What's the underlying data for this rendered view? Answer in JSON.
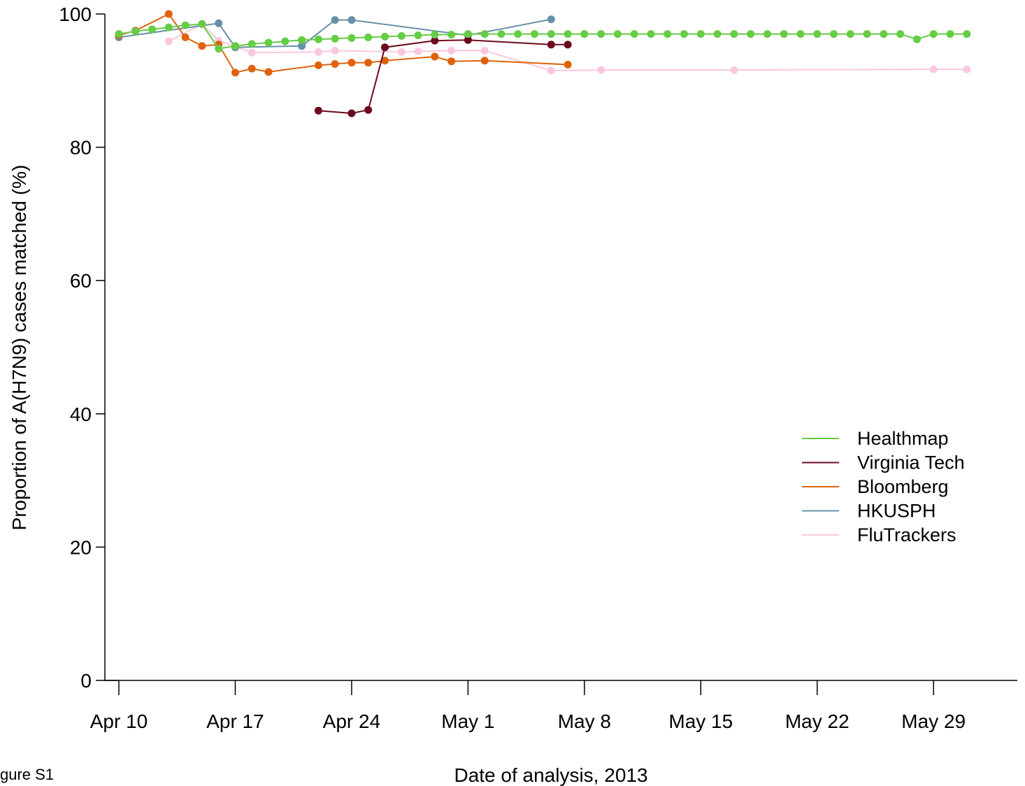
{
  "figure_caption": "gure S1",
  "chart_data": {
    "type": "line",
    "xlabel": "Date of analysis, 2013",
    "ylabel": "Proportion of A(H7N9) cases matched (%)",
    "xlim": [
      "2013-04-10",
      "2013-06-04"
    ],
    "ylim": [
      0,
      100
    ],
    "x_ticks": [
      {
        "date": "2013-04-10",
        "label": "Apr 10"
      },
      {
        "date": "2013-04-17",
        "label": "Apr 17"
      },
      {
        "date": "2013-04-24",
        "label": "Apr 24"
      },
      {
        "date": "2013-05-01",
        "label": "May 1"
      },
      {
        "date": "2013-05-08",
        "label": "May 8"
      },
      {
        "date": "2013-05-15",
        "label": "May 15"
      },
      {
        "date": "2013-05-22",
        "label": "May 22"
      },
      {
        "date": "2013-05-29",
        "label": "May 29"
      }
    ],
    "y_ticks": [
      0,
      20,
      40,
      60,
      80,
      100
    ],
    "grid": false,
    "legend_position": "bottom-right",
    "series": [
      {
        "name": "Healthmap",
        "color": "#66cc44",
        "points": [
          [
            "2013-04-10",
            97.0
          ],
          [
            "2013-04-11",
            97.4
          ],
          [
            "2013-04-12",
            97.7
          ],
          [
            "2013-04-13",
            98.0
          ],
          [
            "2013-04-14",
            98.3
          ],
          [
            "2013-04-15",
            98.5
          ],
          [
            "2013-04-16",
            94.8
          ],
          [
            "2013-04-17",
            95.2
          ],
          [
            "2013-04-18",
            95.5
          ],
          [
            "2013-04-19",
            95.7
          ],
          [
            "2013-04-20",
            95.9
          ],
          [
            "2013-04-21",
            96.1
          ],
          [
            "2013-04-22",
            96.2
          ],
          [
            "2013-04-23",
            96.3
          ],
          [
            "2013-04-24",
            96.4
          ],
          [
            "2013-04-25",
            96.5
          ],
          [
            "2013-04-26",
            96.6
          ],
          [
            "2013-04-27",
            96.7
          ],
          [
            "2013-04-28",
            96.8
          ],
          [
            "2013-04-29",
            96.9
          ],
          [
            "2013-04-30",
            96.9
          ],
          [
            "2013-05-01",
            97.0
          ],
          [
            "2013-05-02",
            97.0
          ],
          [
            "2013-05-03",
            97.0
          ],
          [
            "2013-05-04",
            97.0
          ],
          [
            "2013-05-05",
            97.0
          ],
          [
            "2013-05-06",
            97.0
          ],
          [
            "2013-05-07",
            97.0
          ],
          [
            "2013-05-08",
            97.0
          ],
          [
            "2013-05-09",
            97.0
          ],
          [
            "2013-05-10",
            97.0
          ],
          [
            "2013-05-11",
            97.0
          ],
          [
            "2013-05-12",
            97.0
          ],
          [
            "2013-05-13",
            97.0
          ],
          [
            "2013-05-14",
            97.0
          ],
          [
            "2013-05-15",
            97.0
          ],
          [
            "2013-05-16",
            97.0
          ],
          [
            "2013-05-17",
            97.0
          ],
          [
            "2013-05-18",
            97.0
          ],
          [
            "2013-05-19",
            97.0
          ],
          [
            "2013-05-20",
            97.0
          ],
          [
            "2013-05-21",
            97.0
          ],
          [
            "2013-05-22",
            97.0
          ],
          [
            "2013-05-23",
            97.0
          ],
          [
            "2013-05-24",
            97.0
          ],
          [
            "2013-05-25",
            97.0
          ],
          [
            "2013-05-26",
            97.0
          ],
          [
            "2013-05-27",
            97.0
          ],
          [
            "2013-05-28",
            96.2
          ],
          [
            "2013-05-29",
            97.0
          ],
          [
            "2013-05-30",
            97.0
          ],
          [
            "2013-05-31",
            97.0
          ]
        ]
      },
      {
        "name": "Virginia Tech",
        "color": "#6b0a1e",
        "points": [
          [
            "2013-04-22",
            85.5
          ],
          [
            "2013-04-24",
            85.1
          ],
          [
            "2013-04-25",
            85.6
          ],
          [
            "2013-04-26",
            95.0
          ],
          [
            "2013-04-29",
            96.0
          ],
          [
            "2013-05-01",
            96.1
          ],
          [
            "2013-05-06",
            95.4
          ],
          [
            "2013-05-07",
            95.4
          ]
        ]
      },
      {
        "name": "Bloomberg",
        "color": "#e0620c",
        "points": [
          [
            "2013-04-10",
            96.8
          ],
          [
            "2013-04-11",
            97.5
          ],
          [
            "2013-04-13",
            100.0
          ],
          [
            "2013-04-14",
            96.5
          ],
          [
            "2013-04-15",
            95.2
          ],
          [
            "2013-04-16",
            95.4
          ],
          [
            "2013-04-17",
            91.2
          ],
          [
            "2013-04-18",
            91.8
          ],
          [
            "2013-04-19",
            91.3
          ],
          [
            "2013-04-22",
            92.3
          ],
          [
            "2013-04-23",
            92.5
          ],
          [
            "2013-04-24",
            92.7
          ],
          [
            "2013-04-25",
            92.7
          ],
          [
            "2013-04-26",
            93.0
          ],
          [
            "2013-04-29",
            93.6
          ],
          [
            "2013-04-30",
            92.9
          ],
          [
            "2013-05-02",
            93.0
          ],
          [
            "2013-05-07",
            92.4
          ]
        ]
      },
      {
        "name": "HKUSPH",
        "color": "#6890a8",
        "points": [
          [
            "2013-04-10",
            96.5
          ],
          [
            "2013-04-16",
            98.6
          ],
          [
            "2013-04-17",
            95.0
          ],
          [
            "2013-04-21",
            95.2
          ],
          [
            "2013-04-23",
            99.1
          ],
          [
            "2013-04-24",
            99.1
          ],
          [
            "2013-05-01",
            96.8
          ],
          [
            "2013-05-06",
            99.2
          ]
        ]
      },
      {
        "name": "FluTrackers",
        "color": "#f9c8df",
        "points": [
          [
            "2013-04-13",
            95.9
          ],
          [
            "2013-04-15",
            98.5
          ],
          [
            "2013-04-16",
            96.0
          ],
          [
            "2013-04-18",
            94.2
          ],
          [
            "2013-04-22",
            94.3
          ],
          [
            "2013-04-23",
            94.5
          ],
          [
            "2013-04-27",
            94.3
          ],
          [
            "2013-04-28",
            94.4
          ],
          [
            "2013-04-30",
            94.5
          ],
          [
            "2013-05-02",
            94.5
          ],
          [
            "2013-05-06",
            91.5
          ],
          [
            "2013-05-09",
            91.6
          ],
          [
            "2013-05-17",
            91.6
          ],
          [
            "2013-05-29",
            91.7
          ],
          [
            "2013-05-31",
            91.7
          ]
        ]
      }
    ]
  }
}
